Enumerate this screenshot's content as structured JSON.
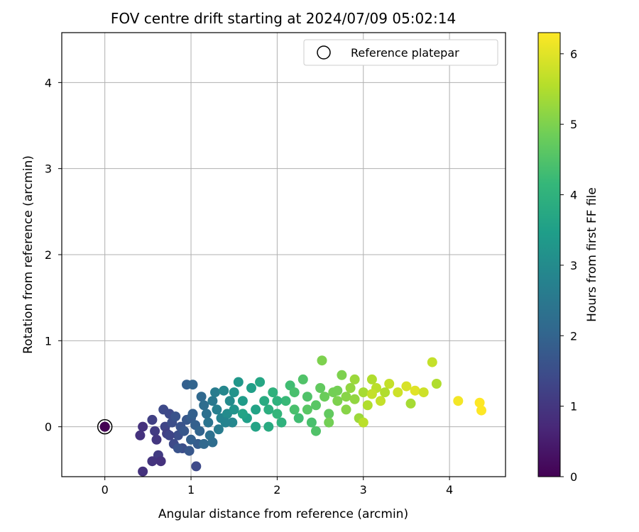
{
  "chart_data": {
    "type": "scatter",
    "title": "FOV centre drift starting at 2024/07/09 05:02:14",
    "xlabel": "Angular distance from reference (arcmin)",
    "ylabel": "Rotation from reference (arcmin)",
    "xlim": [
      -0.5,
      4.65
    ],
    "ylim": [
      -0.58,
      4.58
    ],
    "xticks": [
      "0",
      "1",
      "2",
      "3",
      "4"
    ],
    "yticks": [
      "0",
      "1",
      "2",
      "3",
      "4"
    ],
    "grid": true,
    "legend": {
      "placement": "top-right",
      "entries": [
        "Reference platepar"
      ]
    },
    "colorbar": {
      "label": "Hours from first FF file",
      "range": [
        0,
        6.3
      ],
      "ticks": [
        "0",
        "1",
        "2",
        "3",
        "4",
        "5",
        "6"
      ],
      "colormap": "viridis"
    },
    "reference_point": {
      "x": 0,
      "y": 0
    },
    "points": [
      [
        0.0,
        0.0,
        0.02
      ],
      [
        0.44,
        0.0,
        0.9
      ],
      [
        0.41,
        -0.1,
        0.9
      ],
      [
        0.55,
        0.08,
        1.2
      ],
      [
        0.58,
        -0.05,
        1.1
      ],
      [
        0.6,
        -0.15,
        1.0
      ],
      [
        0.62,
        -0.33,
        1.1
      ],
      [
        0.55,
        -0.4,
        0.95
      ],
      [
        0.44,
        -0.52,
        0.9
      ],
      [
        0.68,
        0.2,
        1.4
      ],
      [
        0.7,
        0.0,
        1.3
      ],
      [
        0.72,
        -0.08,
        1.2
      ],
      [
        0.75,
        0.15,
        1.4
      ],
      [
        0.78,
        0.05,
        1.5
      ],
      [
        0.8,
        -0.2,
        1.4
      ],
      [
        0.82,
        0.12,
        1.6
      ],
      [
        0.85,
        -0.1,
        1.5
      ],
      [
        0.88,
        0.0,
        1.6
      ],
      [
        0.9,
        -0.25,
        1.5
      ],
      [
        0.92,
        -0.05,
        1.7
      ],
      [
        0.95,
        0.08,
        1.7
      ],
      [
        0.98,
        -0.28,
        1.7
      ],
      [
        1.0,
        0.1,
        1.8
      ],
      [
        1.02,
        0.15,
        1.9
      ],
      [
        1.05,
        0.02,
        1.9
      ],
      [
        1.08,
        -0.2,
        1.8
      ],
      [
        1.1,
        -0.05,
        2.0
      ],
      [
        0.95,
        0.49,
        1.9
      ],
      [
        1.02,
        0.49,
        2.0
      ],
      [
        1.12,
        0.35,
        2.1
      ],
      [
        1.15,
        0.25,
        2.2
      ],
      [
        1.18,
        0.15,
        2.3
      ],
      [
        1.2,
        0.05,
        2.4
      ],
      [
        1.22,
        -0.1,
        2.3
      ],
      [
        1.25,
        0.3,
        2.5
      ],
      [
        1.28,
        0.4,
        2.6
      ],
      [
        1.3,
        0.2,
        2.7
      ],
      [
        1.32,
        -0.03,
        2.6
      ],
      [
        1.35,
        0.1,
        2.8
      ],
      [
        1.38,
        0.42,
        2.9
      ],
      [
        1.42,
        0.15,
        3.0
      ],
      [
        1.45,
        0.3,
        3.0
      ],
      [
        1.48,
        0.05,
        2.9
      ],
      [
        1.5,
        0.4,
        3.2
      ],
      [
        1.55,
        0.52,
        3.3
      ],
      [
        1.6,
        0.3,
        3.4
      ],
      [
        1.65,
        0.1,
        3.5
      ],
      [
        1.7,
        0.45,
        3.5
      ],
      [
        1.75,
        0.2,
        3.6
      ],
      [
        1.8,
        0.52,
        3.7
      ],
      [
        1.85,
        0.3,
        3.8
      ],
      [
        1.9,
        0.2,
        3.9
      ],
      [
        1.95,
        0.4,
        4.0
      ],
      [
        2.0,
        0.15,
        4.1
      ],
      [
        2.05,
        0.05,
        4.0
      ],
      [
        2.1,
        0.3,
        4.2
      ],
      [
        2.15,
        0.48,
        4.3
      ],
      [
        2.2,
        0.2,
        4.4
      ],
      [
        2.25,
        0.1,
        4.3
      ],
      [
        2.3,
        0.55,
        4.5
      ],
      [
        2.35,
        0.35,
        4.5
      ],
      [
        2.4,
        0.05,
        4.4
      ],
      [
        2.45,
        0.25,
        4.6
      ],
      [
        2.5,
        0.45,
        4.7
      ],
      [
        2.55,
        0.35,
        4.8
      ],
      [
        2.6,
        0.15,
        4.7
      ],
      [
        2.65,
        0.4,
        4.9
      ],
      [
        2.7,
        0.3,
        5.0
      ],
      [
        2.75,
        0.6,
        5.0
      ],
      [
        2.8,
        0.2,
        5.1
      ],
      [
        2.85,
        0.45,
        5.2
      ],
      [
        2.9,
        0.55,
        5.3
      ],
      [
        2.95,
        0.1,
        5.3
      ],
      [
        3.0,
        0.4,
        5.4
      ],
      [
        3.05,
        0.25,
        5.5
      ],
      [
        3.1,
        0.55,
        5.5
      ],
      [
        3.15,
        0.45,
        5.6
      ],
      [
        3.2,
        0.3,
        5.7
      ],
      [
        3.3,
        0.5,
        5.7
      ],
      [
        3.4,
        0.4,
        5.8
      ],
      [
        3.5,
        0.47,
        5.9
      ],
      [
        3.6,
        0.42,
        6.0
      ],
      [
        3.7,
        0.4,
        5.8
      ],
      [
        3.8,
        0.75,
        5.7
      ],
      [
        4.1,
        0.3,
        6.2
      ],
      [
        4.35,
        0.28,
        6.3
      ],
      [
        4.37,
        0.19,
        6.3
      ],
      [
        2.52,
        0.77,
        5.0
      ],
      [
        1.06,
        -0.46,
        1.4
      ],
      [
        1.5,
        0.2,
        3.2
      ],
      [
        1.9,
        0.0,
        3.8
      ],
      [
        2.35,
        0.2,
        4.6
      ],
      [
        2.6,
        0.05,
        4.9
      ],
      [
        2.8,
        0.35,
        5.1
      ],
      [
        3.0,
        0.05,
        5.6
      ],
      [
        3.25,
        0.4,
        5.5
      ],
      [
        0.65,
        -0.4,
        0.9
      ],
      [
        0.75,
        -0.1,
        1.3
      ],
      [
        0.85,
        -0.25,
        1.6
      ],
      [
        1.0,
        -0.15,
        1.9
      ],
      [
        1.15,
        -0.2,
        2.1
      ],
      [
        1.25,
        -0.18,
        2.2
      ],
      [
        1.4,
        0.05,
        2.8
      ],
      [
        1.6,
        0.15,
        3.6
      ],
      [
        1.75,
        0.0,
        3.6
      ],
      [
        2.0,
        0.3,
        4.0
      ],
      [
        2.2,
        0.4,
        4.4
      ],
      [
        2.45,
        -0.05,
        4.5
      ],
      [
        2.7,
        0.42,
        4.9
      ],
      [
        2.9,
        0.32,
        5.2
      ],
      [
        3.1,
        0.38,
        5.7
      ],
      [
        3.55,
        0.27,
        5.4
      ],
      [
        3.85,
        0.5,
        5.5
      ]
    ]
  }
}
